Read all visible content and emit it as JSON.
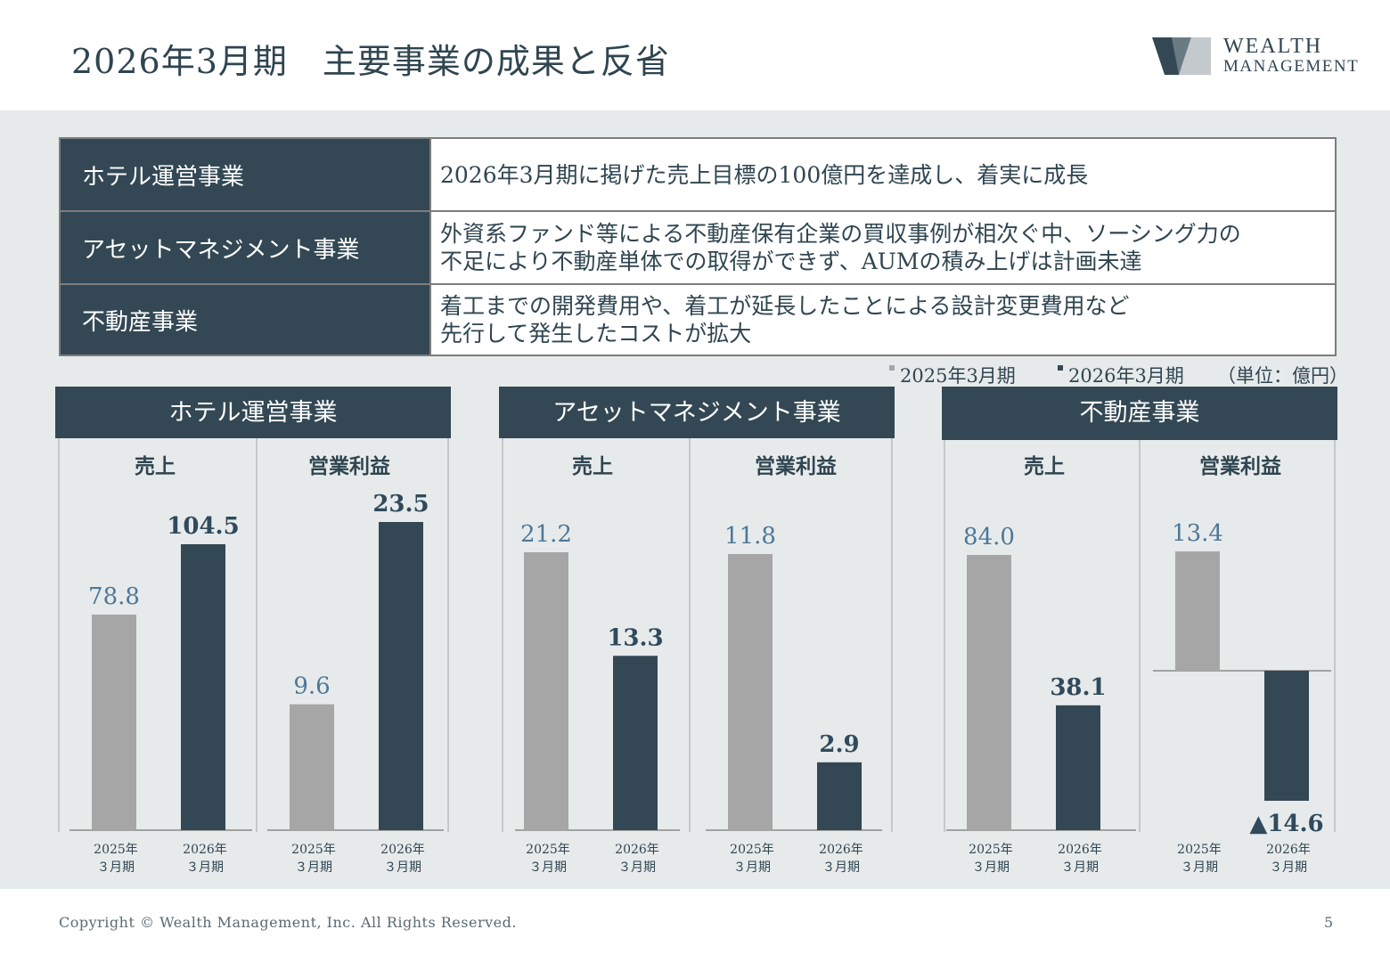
{
  "header": {
    "title": "2026年3月期　主要事業の成果と反省",
    "logo_line1": "WEALTH",
    "logo_line2": "MANAGEMENT"
  },
  "summary": [
    {
      "segment": "ホテル運営事業",
      "lines": [
        "2026年3月期に掲げた売上目標の100億円を達成し、着実に成長"
      ]
    },
    {
      "segment": "アセットマネジメント事業",
      "lines": [
        "外資系ファンド等による不動産保有企業の買収事例が相次ぐ中、ソーシング力の",
        "不足により不動産単体での取得ができず、AUMの積み上げは計画未達"
      ]
    },
    {
      "segment": "不動産事業",
      "lines": [
        "着工までの開発費用や、着工が延長したことによる設計変更費用など",
        "先行して発生したコストが拡大"
      ]
    }
  ],
  "legend": {
    "prev": "2025年3月期",
    "curr": "2026年3月期",
    "unit": "（単位：億円）"
  },
  "colors": {
    "prev_bar": "#a6a6a6",
    "curr_bar": "#334854",
    "prev_label": "#4d7898",
    "curr_label": "#2f4a5c",
    "panel_bg": "#e7eaeb"
  },
  "chart_data": [
    {
      "type": "bar",
      "title": "ホテル運営事業",
      "subtitle": "売上",
      "categories": [
        "2025年\n３月期",
        "2026年\n３月期"
      ],
      "values": [
        78.8,
        104.5
      ],
      "labels": [
        "78.8",
        "104.5"
      ]
    },
    {
      "type": "bar",
      "title": "ホテル運営事業",
      "subtitle": "営業利益",
      "categories": [
        "2025年\n３月期",
        "2026年\n３月期"
      ],
      "values": [
        9.6,
        23.5
      ],
      "labels": [
        "9.6",
        "23.5"
      ]
    },
    {
      "type": "bar",
      "title": "アセットマネジメント事業",
      "subtitle": "売上",
      "categories": [
        "2025年\n３月期",
        "2026年\n３月期"
      ],
      "values": [
        21.2,
        13.3
      ],
      "labels": [
        "21.2",
        "13.3"
      ]
    },
    {
      "type": "bar",
      "title": "アセットマネジメント事業",
      "subtitle": "営業利益",
      "categories": [
        "2025年\n３月期",
        "2026年\n３月期"
      ],
      "values": [
        11.8,
        2.9
      ],
      "labels": [
        "11.8",
        "2.9"
      ]
    },
    {
      "type": "bar",
      "title": "不動産事業",
      "subtitle": "売上",
      "categories": [
        "2025年\n３月期",
        "2026年\n３月期"
      ],
      "values": [
        84.0,
        38.1
      ],
      "labels": [
        "84.0",
        "38.1"
      ]
    },
    {
      "type": "bar",
      "title": "不動産事業",
      "subtitle": "営業利益",
      "categories": [
        "2025年\n３月期",
        "2026年\n３月期"
      ],
      "values": [
        13.4,
        -14.6
      ],
      "labels": [
        "13.4",
        "▲14.6"
      ]
    }
  ],
  "footer": {
    "copyright": "Copyright © Wealth Management, Inc. All Rights Reserved.",
    "page": "5"
  }
}
